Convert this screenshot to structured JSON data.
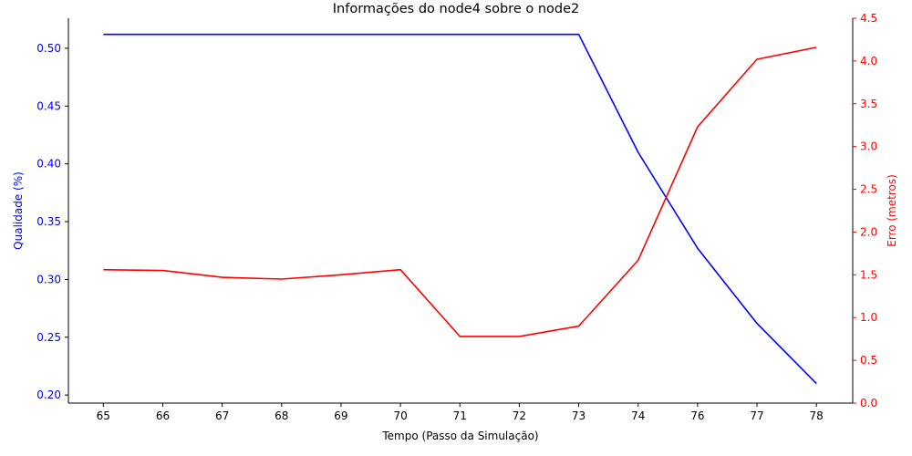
{
  "chart_data": {
    "type": "line",
    "title": "Informações do node4 sobre o node2",
    "xlabel": "Tempo (Passo da Simulação)",
    "categories": [
      "65",
      "66",
      "67",
      "68",
      "69",
      "70",
      "71",
      "72",
      "73",
      "74",
      "76",
      "77",
      "78"
    ],
    "x_axis_scale": "categorical",
    "y_left": {
      "label": "Qualidade (%)",
      "color": "#0000ff",
      "ylim": [
        0.193,
        0.526
      ],
      "ticks": [
        "0.20",
        "0.25",
        "0.30",
        "0.35",
        "0.40",
        "0.45",
        "0.50"
      ]
    },
    "y_right": {
      "label": "Erro (metros)",
      "color": "#ff0000",
      "ylim": [
        0.0,
        4.5
      ],
      "ticks": [
        "0.0",
        "0.5",
        "1.0",
        "1.5",
        "2.0",
        "2.5",
        "3.0",
        "3.5",
        "4.0",
        "4.5"
      ]
    },
    "series": [
      {
        "axis": "left",
        "color": "#0000ff",
        "values": [
          0.512,
          0.512,
          0.512,
          0.512,
          0.512,
          0.512,
          0.512,
          0.512,
          0.512,
          0.41,
          0.327,
          0.262,
          0.21
        ]
      },
      {
        "axis": "right",
        "color": "#ff0000",
        "values": [
          1.56,
          1.55,
          1.47,
          1.45,
          1.5,
          1.56,
          0.78,
          0.78,
          0.9,
          1.67,
          3.23,
          4.02,
          4.16
        ]
      }
    ],
    "grid": false,
    "legend": "none"
  }
}
